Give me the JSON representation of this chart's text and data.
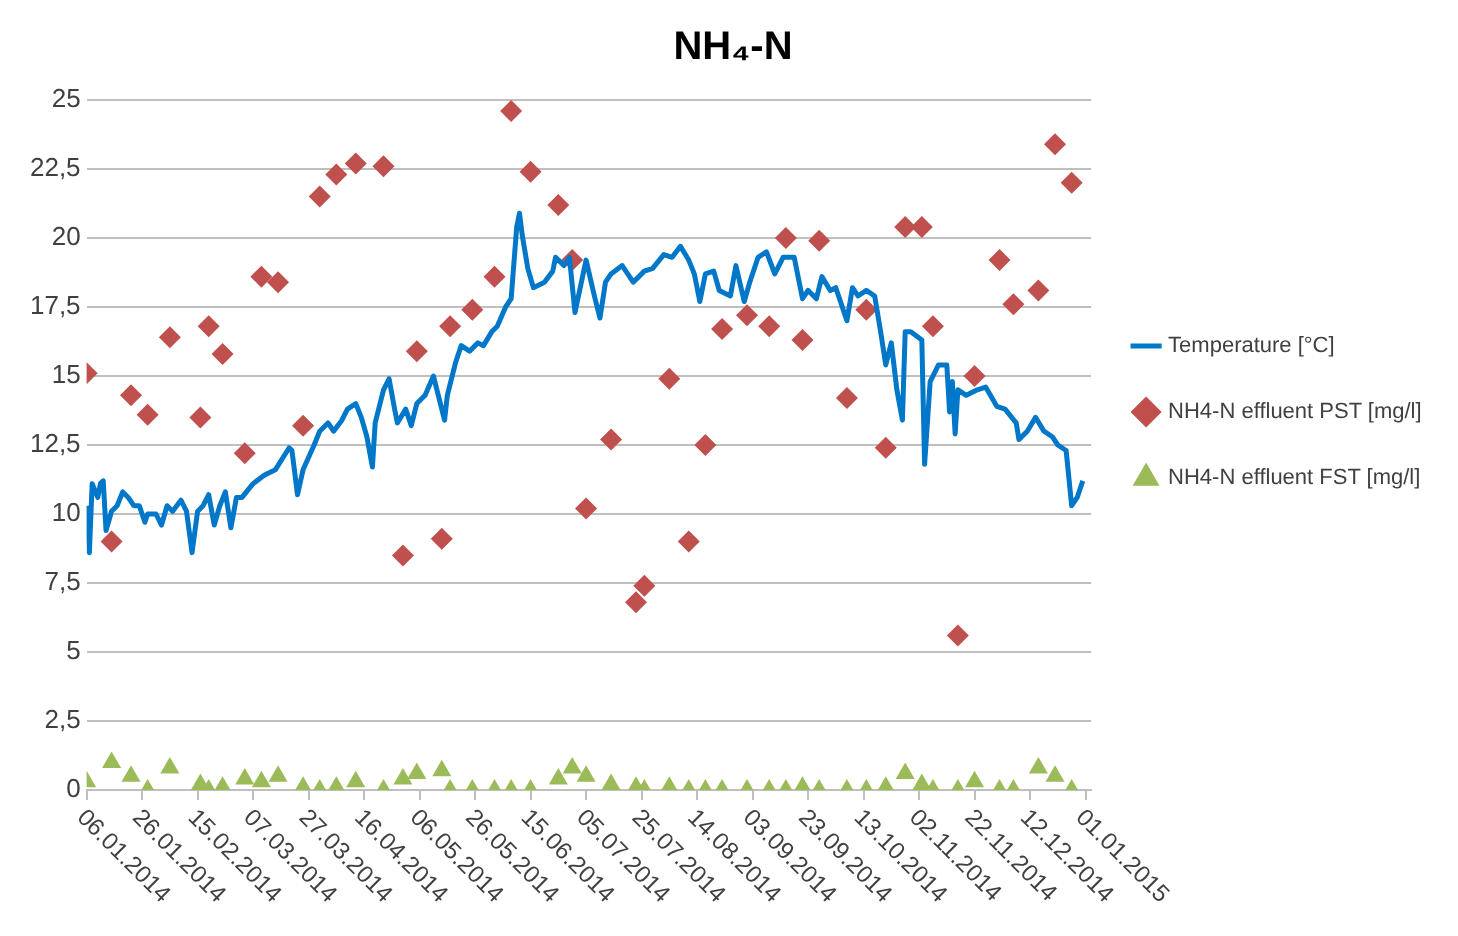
{
  "chart_data": {
    "type": "line",
    "title": "NH₄-N",
    "xlim": [
      "2014-01-06",
      "2015-01-03"
    ],
    "xticks": [
      {
        "value": "2014-01-06",
        "label": "06.01.2014"
      },
      {
        "value": "2014-01-26",
        "label": "26.01.2014"
      },
      {
        "value": "2014-02-15",
        "label": "15.02.2014"
      },
      {
        "value": "2014-03-07",
        "label": "07.03.2014"
      },
      {
        "value": "2014-03-27",
        "label": "27.03.2014"
      },
      {
        "value": "2014-04-16",
        "label": "16.04.2014"
      },
      {
        "value": "2014-05-06",
        "label": "06.05.2014"
      },
      {
        "value": "2014-05-26",
        "label": "26.05.2014"
      },
      {
        "value": "2014-06-15",
        "label": "15.06.2014"
      },
      {
        "value": "2014-07-05",
        "label": "05.07.2014"
      },
      {
        "value": "2014-07-25",
        "label": "25.07.2014"
      },
      {
        "value": "2014-08-14",
        "label": "14.08.2014"
      },
      {
        "value": "2014-09-03",
        "label": "03.09.2014"
      },
      {
        "value": "2014-09-23",
        "label": "23.09.2014"
      },
      {
        "value": "2014-10-13",
        "label": "13.10.2014"
      },
      {
        "value": "2014-11-02",
        "label": "02.11.2014"
      },
      {
        "value": "2014-11-22",
        "label": "22.11.2014"
      },
      {
        "value": "2014-12-12",
        "label": "12.12.2014"
      },
      {
        "value": "2015-01-01",
        "label": "01.01.2015"
      }
    ],
    "ylim": [
      0,
      25
    ],
    "yticks": [
      0,
      {
        "value": 2.5,
        "label": "2,5"
      },
      5,
      {
        "value": 7.5,
        "label": "7,5"
      },
      10,
      {
        "value": 12.5,
        "label": "12,5"
      },
      15,
      {
        "value": 17.5,
        "label": "17,5"
      },
      20,
      {
        "value": 22.5,
        "label": "22,5"
      },
      25
    ],
    "grid": "y",
    "legend": "right",
    "series": [
      {
        "name": "Temperature [°C]",
        "color": "#0077c8",
        "marker": "none",
        "line_style": "solid",
        "x": [
          "2014-01-06",
          "2014-01-07",
          "2014-01-08",
          "2014-01-10",
          "2014-01-11",
          "2014-01-12",
          "2014-01-13",
          "2014-01-15",
          "2014-01-17",
          "2014-01-19",
          "2014-01-21",
          "2014-01-23",
          "2014-01-25",
          "2014-01-27",
          "2014-01-28",
          "2014-01-31",
          "2014-02-02",
          "2014-02-04",
          "2014-02-06",
          "2014-02-09",
          "2014-02-11",
          "2014-02-13",
          "2014-02-15",
          "2014-02-17",
          "2014-02-19",
          "2014-02-21",
          "2014-02-23",
          "2014-02-25",
          "2014-02-27",
          "2014-03-01",
          "2014-03-03",
          "2014-03-07",
          "2014-03-11",
          "2014-03-15",
          "2014-03-20",
          "2014-03-21",
          "2014-03-23",
          "2014-03-25",
          "2014-03-29",
          "2014-03-31",
          "2014-04-03",
          "2014-04-05",
          "2014-04-08",
          "2014-04-10",
          "2014-04-13",
          "2014-04-15",
          "2014-04-17",
          "2014-04-19",
          "2014-04-20",
          "2014-04-23",
          "2014-04-25",
          "2014-04-27",
          "2014-04-28",
          "2014-05-01",
          "2014-05-03",
          "2014-05-05",
          "2014-05-08",
          "2014-05-11",
          "2014-05-12",
          "2014-05-15",
          "2014-05-16",
          "2014-05-19",
          "2014-05-21",
          "2014-05-24",
          "2014-05-27",
          "2014-05-29",
          "2014-06-01",
          "2014-06-03",
          "2014-06-06",
          "2014-06-08",
          "2014-06-10",
          "2014-06-11",
          "2014-06-12",
          "2014-06-14",
          "2014-06-16",
          "2014-06-20",
          "2014-06-23",
          "2014-06-24",
          "2014-06-27",
          "2014-06-29",
          "2014-07-01",
          "2014-07-05",
          "2014-07-08",
          "2014-07-10",
          "2014-07-12",
          "2014-07-14",
          "2014-07-18",
          "2014-07-22",
          "2014-07-26",
          "2014-07-29",
          "2014-08-02",
          "2014-08-05",
          "2014-08-08",
          "2014-08-11",
          "2014-08-13",
          "2014-08-15",
          "2014-08-17",
          "2014-08-20",
          "2014-08-22",
          "2014-08-26",
          "2014-08-28",
          "2014-08-31",
          "2014-09-02",
          "2014-09-05",
          "2014-09-08",
          "2014-09-11",
          "2014-09-14",
          "2014-09-18",
          "2014-09-21",
          "2014-09-23",
          "2014-09-26",
          "2014-09-28",
          "2014-10-01",
          "2014-10-03",
          "2014-10-05",
          "2014-10-07",
          "2014-10-09",
          "2014-10-11",
          "2014-10-14",
          "2014-10-17",
          "2014-10-19",
          "2014-10-21",
          "2014-10-23",
          "2014-10-25",
          "2014-10-27",
          "2014-10-28",
          "2014-10-30",
          "2014-11-03",
          "2014-11-04",
          "2014-11-06",
          "2014-11-09",
          "2014-11-12",
          "2014-11-13",
          "2014-11-14",
          "2014-11-15",
          "2014-11-16",
          "2014-11-19",
          "2014-11-23",
          "2014-11-26",
          "2014-11-30",
          "2014-12-03",
          "2014-12-07",
          "2014-12-08",
          "2014-12-11",
          "2014-12-14",
          "2014-12-17",
          "2014-12-20",
          "2014-12-22",
          "2014-12-25",
          "2014-12-27",
          "2014-12-29",
          "2014-12-31"
        ],
        "values": [
          10.3,
          8.6,
          11.1,
          10.6,
          11.1,
          11.2,
          9.4,
          10.1,
          10.3,
          10.8,
          10.6,
          10.3,
          10.3,
          9.7,
          10.0,
          10.0,
          9.6,
          10.3,
          10.1,
          10.5,
          10.1,
          8.6,
          10.1,
          10.3,
          10.7,
          9.6,
          10.3,
          10.8,
          9.5,
          10.6,
          10.6,
          11.1,
          11.4,
          11.6,
          12.4,
          12.3,
          10.7,
          11.6,
          12.5,
          13.0,
          13.3,
          13.0,
          13.4,
          13.8,
          14.0,
          13.5,
          12.8,
          11.7,
          13.3,
          14.5,
          14.9,
          13.8,
          13.3,
          13.8,
          13.2,
          14.0,
          14.3,
          15.0,
          14.6,
          13.4,
          14.3,
          15.5,
          16.1,
          15.9,
          16.2,
          16.1,
          16.6,
          16.8,
          17.5,
          17.8,
          20.4,
          20.9,
          20.1,
          18.9,
          18.2,
          18.4,
          18.8,
          19.3,
          19.0,
          19.3,
          17.3,
          19.2,
          17.9,
          17.1,
          18.4,
          18.7,
          19.0,
          18.4,
          18.8,
          18.9,
          19.4,
          19.3,
          19.7,
          19.2,
          18.7,
          17.7,
          18.7,
          18.8,
          18.1,
          17.9,
          19.0,
          17.7,
          18.4,
          19.3,
          19.5,
          18.7,
          19.3,
          19.3,
          17.8,
          18.1,
          17.8,
          18.6,
          18.1,
          18.2,
          17.6,
          17.0,
          18.2,
          17.9,
          18.1,
          17.9,
          16.7,
          15.4,
          16.2,
          14.5,
          13.4,
          16.6,
          16.6,
          16.3,
          11.8,
          14.8,
          15.4,
          15.4,
          13.7,
          14.8,
          12.9,
          14.5,
          14.3,
          14.5,
          14.6,
          13.9,
          13.8,
          13.3,
          12.7,
          13.0,
          13.5,
          13.0,
          12.8,
          12.5,
          12.3,
          10.3,
          10.6,
          11.2
        ]
      },
      {
        "name": "NH4-N effluent PST [mg/l]",
        "type": "scatter",
        "color": "#c0504d",
        "marker": "diamond",
        "x": [
          "2014-01-06",
          "2014-01-15",
          "2014-01-22",
          "2014-01-28",
          "2014-02-05",
          "2014-02-16",
          "2014-02-19",
          "2014-02-24",
          "2014-03-04",
          "2014-03-10",
          "2014-03-16",
          "2014-03-25",
          "2014-03-31",
          "2014-04-06",
          "2014-04-13",
          "2014-04-23",
          "2014-04-30",
          "2014-05-05",
          "2014-05-14",
          "2014-05-17",
          "2014-05-25",
          "2014-06-02",
          "2014-06-08",
          "2014-06-15",
          "2014-06-25",
          "2014-06-30",
          "2014-07-05",
          "2014-07-14",
          "2014-07-23",
          "2014-07-26",
          "2014-08-04",
          "2014-08-11",
          "2014-08-17",
          "2014-08-23",
          "2014-09-01",
          "2014-09-09",
          "2014-09-15",
          "2014-09-21",
          "2014-09-27",
          "2014-10-07",
          "2014-10-14",
          "2014-10-21",
          "2014-10-28",
          "2014-11-03",
          "2014-11-07",
          "2014-11-16",
          "2014-11-22",
          "2014-12-01",
          "2014-12-06",
          "2014-12-15",
          "2014-12-21",
          "2014-12-27"
        ],
        "values": [
          15.1,
          9.0,
          14.3,
          13.6,
          16.4,
          13.5,
          16.8,
          15.8,
          12.2,
          18.6,
          18.4,
          13.2,
          21.5,
          22.3,
          22.7,
          22.6,
          8.5,
          15.9,
          9.1,
          16.8,
          17.4,
          18.6,
          24.6,
          22.4,
          21.2,
          19.2,
          10.2,
          12.7,
          6.8,
          7.4,
          14.9,
          9.0,
          12.5,
          16.7,
          17.2,
          16.8,
          20.0,
          16.3,
          19.9,
          14.2,
          17.4,
          12.4,
          20.4,
          20.4,
          16.8,
          5.6,
          15.0,
          19.2,
          17.6,
          18.1,
          23.4,
          22.0
        ]
      },
      {
        "name": "NH4-N effluent FST [mg/l]",
        "type": "scatter",
        "color": "#9bbb59",
        "marker": "triangle",
        "x": [
          "2014-01-06",
          "2014-01-15",
          "2014-01-22",
          "2014-01-28",
          "2014-02-05",
          "2014-02-16",
          "2014-02-19",
          "2014-02-24",
          "2014-03-04",
          "2014-03-10",
          "2014-03-16",
          "2014-03-25",
          "2014-03-31",
          "2014-04-06",
          "2014-04-13",
          "2014-04-23",
          "2014-04-30",
          "2014-05-05",
          "2014-05-14",
          "2014-05-17",
          "2014-05-25",
          "2014-06-02",
          "2014-06-08",
          "2014-06-15",
          "2014-06-25",
          "2014-06-30",
          "2014-07-05",
          "2014-07-14",
          "2014-07-23",
          "2014-07-26",
          "2014-08-04",
          "2014-08-11",
          "2014-08-17",
          "2014-08-23",
          "2014-09-01",
          "2014-09-09",
          "2014-09-15",
          "2014-09-21",
          "2014-09-27",
          "2014-10-07",
          "2014-10-14",
          "2014-10-21",
          "2014-10-28",
          "2014-11-03",
          "2014-11-07",
          "2014-11-16",
          "2014-11-22",
          "2014-12-01",
          "2014-12-06",
          "2014-12-15",
          "2014-12-21",
          "2014-12-27"
        ],
        "values": [
          0.3,
          1.0,
          0.5,
          0,
          0.8,
          0.2,
          0,
          0.1,
          0.4,
          0.3,
          0.5,
          0.1,
          0,
          0.1,
          0.3,
          0,
          0.4,
          0.6,
          0.7,
          0,
          0,
          0,
          0,
          0,
          0.4,
          0.8,
          0.5,
          0.2,
          0.1,
          0,
          0.1,
          0,
          0,
          0,
          0,
          0,
          0,
          0.1,
          0,
          0,
          0,
          0.1,
          0.6,
          0.2,
          0,
          0,
          0.3,
          0,
          0,
          0.8,
          0.5,
          0
        ]
      }
    ]
  }
}
